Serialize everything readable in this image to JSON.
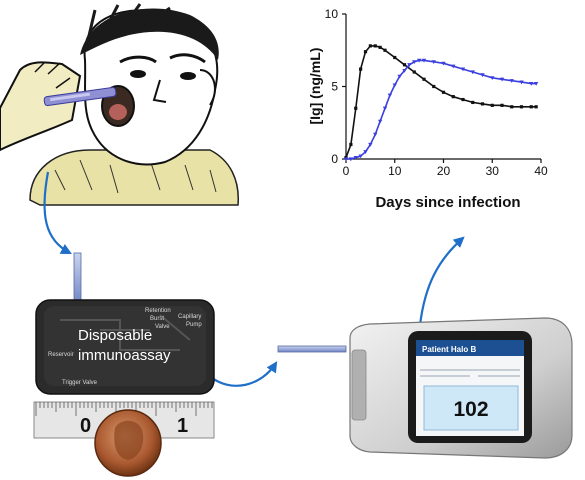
{
  "chart_data": {
    "type": "line",
    "title": "",
    "xlabel": "Days since infection",
    "ylabel": "[Ig] (ng/mL)",
    "xlim": [
      0,
      40
    ],
    "ylim": [
      0,
      10
    ],
    "xticks": [
      "0",
      "10",
      "20",
      "30",
      "40"
    ],
    "yticks": [
      "0",
      "5",
      "10"
    ],
    "grid": false,
    "legend": "none",
    "series": [
      {
        "color": "#111111",
        "marker": "square",
        "x": [
          0,
          1,
          2,
          3,
          4,
          5,
          6,
          7,
          8,
          10,
          12,
          14,
          16,
          18,
          20,
          22,
          24,
          26,
          28,
          30,
          32,
          34,
          36,
          38,
          39
        ],
        "y": [
          0.1,
          1.0,
          3.5,
          6.2,
          7.4,
          7.8,
          7.8,
          7.7,
          7.5,
          7.0,
          6.5,
          6.0,
          5.5,
          5.0,
          4.6,
          4.3,
          4.1,
          3.9,
          3.8,
          3.7,
          3.7,
          3.6,
          3.6,
          3.6,
          3.6
        ]
      },
      {
        "color": "#3b3fe0",
        "marker": "triangle",
        "x": [
          0,
          1,
          2,
          3,
          4,
          5,
          6,
          7,
          8,
          9,
          10,
          11,
          12,
          13,
          14,
          15,
          16,
          18,
          20,
          22,
          24,
          26,
          28,
          30,
          32,
          34,
          36,
          38,
          39
        ],
        "y": [
          0.0,
          0.0,
          0.1,
          0.2,
          0.5,
          1.0,
          1.7,
          2.6,
          3.5,
          4.4,
          5.1,
          5.7,
          6.1,
          6.5,
          6.7,
          6.8,
          6.8,
          6.7,
          6.6,
          6.4,
          6.2,
          6.0,
          5.8,
          5.6,
          5.5,
          5.4,
          5.3,
          5.2,
          5.2
        ]
      }
    ]
  },
  "device": {
    "label_line1": "Disposable",
    "label_line2": "immunoassay",
    "schematic": [
      "Retention",
      "Burst",
      "Valve",
      "Capillary",
      "Pump",
      "Reservoir",
      "Trigger Valve"
    ]
  },
  "ruler": {
    "mark_0": "0",
    "mark_1": "1"
  },
  "reader": {
    "header": "Patient Halo B",
    "value": "102"
  },
  "colors": {
    "arrow": "#1f6fc9",
    "device_body": "#2b2b2b",
    "reader_screen": "#cfe8f8"
  },
  "icons": [
    "child-illustration-icon",
    "swab-icon",
    "penny-icon"
  ]
}
